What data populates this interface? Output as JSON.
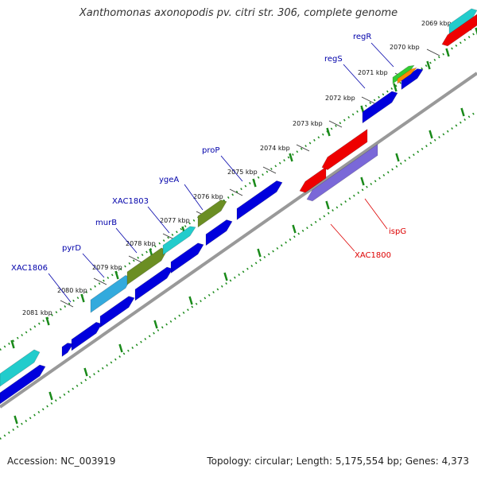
{
  "title": "Xanthomonas axonopodis pv. citri str. 306, complete genome",
  "accession": "Accession: NC_003919",
  "summary": "Topology: circular; Length: 5,175,554 bp; Genes: 4,373",
  "colors": {
    "forward_gene": "#0000dd",
    "cyan_gene": "#22cccc",
    "olive_gene": "#6b8e23",
    "reverse_gene": "#ee0000",
    "purple_gene": "#7a68d8",
    "backbone": "#888888",
    "tick": "#1a8a1a",
    "forward_label": "#0000aa",
    "reverse_label": "#dd0000"
  },
  "kbp_labels": [
    "2069 kbp",
    "2070 kbp",
    "2071 kbp",
    "2072 kbp",
    "2073 kbp",
    "2074 kbp",
    "2075 kbp",
    "2076 kbp",
    "2077 kbp",
    "2078 kbp",
    "2079 kbp",
    "2080 kbp",
    "2081 kbp"
  ],
  "forward_gene_labels": [
    "regR",
    "regS",
    "proP",
    "ygeA",
    "XAC1803",
    "murB",
    "pyrD",
    "XAC1806"
  ],
  "reverse_gene_labels": [
    "ispG",
    "XAC1800"
  ]
}
